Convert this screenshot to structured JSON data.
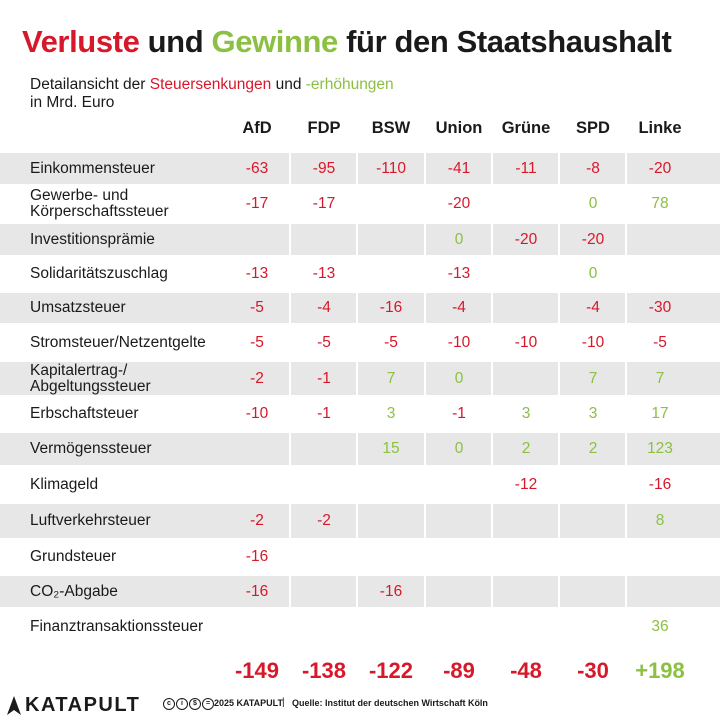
{
  "title": {
    "part1": "Verluste",
    "part2": " und ",
    "part3": "Gewinne",
    "part4": " für den Staatshaushalt"
  },
  "subtitle": {
    "line1_a": "Detailansicht der ",
    "line1_b": "Steuersenkungen",
    "line1_c": " und ",
    "line1_d": "-erhöhungen",
    "line2": "in Mrd. Euro"
  },
  "colors": {
    "negative": "#d7182a",
    "positive": "#8cc043",
    "text": "#1a1a1a",
    "row_shade": "#e7e7e7"
  },
  "chart_data": {
    "type": "table",
    "title": "Verluste und Gewinne für den Staatshaushalt",
    "unit": "in Mrd. Euro",
    "columns": [
      "AfD",
      "FDP",
      "BSW",
      "Union",
      "Grüne",
      "SPD",
      "Linke"
    ],
    "rows": [
      {
        "label": "Einkommensteuer",
        "values": [
          "-63",
          "-95",
          "-110",
          "-41",
          "-11",
          "-8",
          "-20"
        ]
      },
      {
        "label": "Gewerbe- und\nKörperschaftssteuer",
        "values": [
          "-17",
          "-17",
          "",
          "-20",
          "",
          "0",
          "78"
        ]
      },
      {
        "label": "Investitionsprämie",
        "values": [
          "",
          "",
          "",
          "0",
          "-20",
          "-20",
          ""
        ]
      },
      {
        "label": "Solidaritätszuschlag",
        "values": [
          "-13",
          "-13",
          "",
          "-13",
          "",
          "0",
          ""
        ]
      },
      {
        "label": "Umsatzsteuer",
        "values": [
          "-5",
          "-4",
          "-16",
          "-4",
          "",
          "-4",
          "-30"
        ]
      },
      {
        "label": "Stromsteuer/Netzentgelte",
        "values": [
          "-5",
          "-5",
          "-5",
          "-10",
          "-10",
          "-10",
          "-5"
        ]
      },
      {
        "label": "Kapitalertrag-/\nAbgeltungssteuer",
        "values": [
          "-2",
          "-1",
          "7",
          "0",
          "",
          "7",
          "7"
        ]
      },
      {
        "label": "Erbschaftsteuer",
        "values": [
          "-10",
          "-1",
          "3",
          "-1",
          "3",
          "3",
          "17"
        ]
      },
      {
        "label": "Vermögenssteuer",
        "values": [
          "",
          "",
          "15",
          "0",
          "2",
          "2",
          "123"
        ]
      },
      {
        "label": "Klimageld",
        "values": [
          "",
          "",
          "",
          "",
          "-12",
          "",
          "-16"
        ]
      },
      {
        "label": "Luftverkehrsteuer",
        "values": [
          "-2",
          "-2",
          "",
          "",
          "",
          "",
          "8"
        ]
      },
      {
        "label": "Grundsteuer",
        "values": [
          "-16",
          "",
          "",
          "",
          "",
          "",
          ""
        ]
      },
      {
        "label": "CO₂-Abgabe",
        "values": [
          "-16",
          "",
          "-16",
          "",
          "",
          "",
          ""
        ]
      },
      {
        "label": "Finanztransaktionssteuer",
        "values": [
          "",
          "",
          "",
          "",
          "",
          "",
          "36"
        ]
      }
    ],
    "totals": [
      "-149",
      "-138",
      "-122",
      "-89",
      "-48",
      "-30",
      "+198"
    ]
  },
  "footer": {
    "logo": "KATAPULT",
    "license_icons": [
      "cc",
      "by",
      "nc",
      "nd"
    ],
    "copyright": "2025 KATAPULT",
    "separator": "|",
    "source": "Quelle: Institut der deutschen Wirtschaft Köln"
  }
}
